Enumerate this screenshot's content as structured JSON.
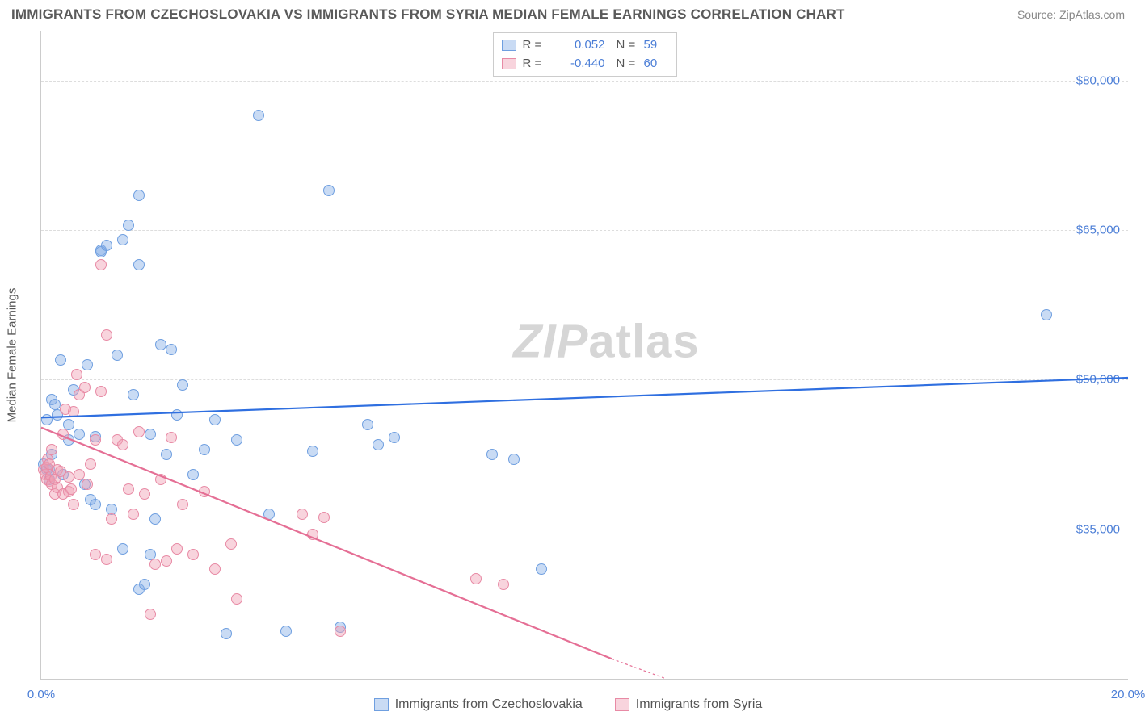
{
  "title": "IMMIGRANTS FROM CZECHOSLOVAKIA VS IMMIGRANTS FROM SYRIA MEDIAN FEMALE EARNINGS CORRELATION CHART",
  "source": "Source: ZipAtlas.com",
  "watermark_a": "ZIP",
  "watermark_b": "atlas",
  "y_axis_title": "Median Female Earnings",
  "chart": {
    "type": "scatter-correlation",
    "background_color": "#ffffff",
    "grid_color": "#dddddd",
    "axis_color": "#cccccc",
    "tick_label_color": "#4a7dd6",
    "xlim": [
      0,
      20
    ],
    "ylim": [
      20000,
      85000
    ],
    "y_ticks": [
      {
        "v": 35000,
        "label": "$35,000"
      },
      {
        "v": 50000,
        "label": "$50,000"
      },
      {
        "v": 65000,
        "label": "$65,000"
      },
      {
        "v": 80000,
        "label": "$80,000"
      }
    ],
    "x_ticks": [
      {
        "v": 0,
        "label": "0.0%"
      },
      {
        "v": 20,
        "label": "20.0%"
      }
    ],
    "marker_radius": 7,
    "marker_stroke_width": 1,
    "trend_line_width": 2.2,
    "series": [
      {
        "name": "Immigrants from Czechoslovakia",
        "color_fill": "rgba(135,175,230,0.45)",
        "color_stroke": "#6f9fe0",
        "trend_color": "#2f6fe0",
        "r": "0.052",
        "n": "59",
        "trend": {
          "x1": 0,
          "y1": 46200,
          "x2": 20,
          "y2": 50200
        },
        "points": [
          [
            0.05,
            41500
          ],
          [
            0.1,
            41000
          ],
          [
            0.1,
            46000
          ],
          [
            0.15,
            40000
          ],
          [
            0.2,
            48000
          ],
          [
            0.2,
            42500
          ],
          [
            0.25,
            47500
          ],
          [
            0.3,
            46500
          ],
          [
            0.35,
            52000
          ],
          [
            0.4,
            40500
          ],
          [
            0.5,
            45500
          ],
          [
            0.5,
            44000
          ],
          [
            0.6,
            49000
          ],
          [
            0.7,
            44500
          ],
          [
            0.8,
            39500
          ],
          [
            0.85,
            51500
          ],
          [
            0.9,
            38000
          ],
          [
            1.0,
            44300
          ],
          [
            1.0,
            37500
          ],
          [
            1.1,
            63000
          ],
          [
            1.1,
            62800
          ],
          [
            1.2,
            63500
          ],
          [
            1.3,
            37000
          ],
          [
            1.4,
            52500
          ],
          [
            1.5,
            64000
          ],
          [
            1.5,
            33000
          ],
          [
            1.6,
            65500
          ],
          [
            1.7,
            48500
          ],
          [
            1.8,
            68500
          ],
          [
            1.8,
            61500
          ],
          [
            1.8,
            29000
          ],
          [
            1.9,
            29500
          ],
          [
            2.0,
            32500
          ],
          [
            2.0,
            44500
          ],
          [
            2.1,
            36000
          ],
          [
            2.2,
            53500
          ],
          [
            2.3,
            42500
          ],
          [
            2.4,
            53000
          ],
          [
            2.5,
            46500
          ],
          [
            2.6,
            49500
          ],
          [
            2.8,
            40500
          ],
          [
            3.0,
            43000
          ],
          [
            3.2,
            46000
          ],
          [
            3.4,
            24500
          ],
          [
            3.6,
            44000
          ],
          [
            4.0,
            76500
          ],
          [
            4.2,
            36500
          ],
          [
            4.5,
            24800
          ],
          [
            5.0,
            42800
          ],
          [
            5.3,
            69000
          ],
          [
            5.5,
            25200
          ],
          [
            6.0,
            45500
          ],
          [
            6.2,
            43500
          ],
          [
            6.5,
            44200
          ],
          [
            8.3,
            42500
          ],
          [
            8.7,
            42000
          ],
          [
            9.2,
            31000
          ],
          [
            18.5,
            56500
          ],
          [
            0.15,
            41000
          ]
        ]
      },
      {
        "name": "Immigrants from Syria",
        "color_fill": "rgba(240,160,180,0.45)",
        "color_stroke": "#e88aa5",
        "trend_color": "#e56f95",
        "r": "-0.440",
        "n": "60",
        "trend": {
          "x1": 0,
          "y1": 45200,
          "x2": 10.5,
          "y2": 22000
        },
        "trend_dash_extension": {
          "x1": 10.5,
          "y1": 22000,
          "x2": 11.5,
          "y2": 20000
        },
        "points": [
          [
            0.05,
            41000
          ],
          [
            0.08,
            40500
          ],
          [
            0.1,
            40000
          ],
          [
            0.1,
            41200
          ],
          [
            0.12,
            42000
          ],
          [
            0.15,
            39800
          ],
          [
            0.15,
            41500
          ],
          [
            0.18,
            40300
          ],
          [
            0.2,
            39500
          ],
          [
            0.2,
            43000
          ],
          [
            0.25,
            40000
          ],
          [
            0.25,
            38500
          ],
          [
            0.3,
            41000
          ],
          [
            0.3,
            39200
          ],
          [
            0.35,
            40800
          ],
          [
            0.4,
            38500
          ],
          [
            0.4,
            44500
          ],
          [
            0.45,
            47000
          ],
          [
            0.5,
            38800
          ],
          [
            0.5,
            40200
          ],
          [
            0.55,
            39000
          ],
          [
            0.6,
            46800
          ],
          [
            0.6,
            37500
          ],
          [
            0.65,
            50500
          ],
          [
            0.7,
            40500
          ],
          [
            0.7,
            48500
          ],
          [
            0.8,
            49200
          ],
          [
            0.85,
            39500
          ],
          [
            0.9,
            41500
          ],
          [
            1.0,
            44000
          ],
          [
            1.0,
            32500
          ],
          [
            1.1,
            48800
          ],
          [
            1.1,
            61500
          ],
          [
            1.2,
            32000
          ],
          [
            1.2,
            54500
          ],
          [
            1.3,
            36000
          ],
          [
            1.4,
            44000
          ],
          [
            1.5,
            43500
          ],
          [
            1.6,
            39000
          ],
          [
            1.7,
            36500
          ],
          [
            1.8,
            44800
          ],
          [
            1.9,
            38500
          ],
          [
            2.0,
            26500
          ],
          [
            2.1,
            31500
          ],
          [
            2.2,
            40000
          ],
          [
            2.3,
            31800
          ],
          [
            2.4,
            44200
          ],
          [
            2.5,
            33000
          ],
          [
            2.6,
            37500
          ],
          [
            2.8,
            32500
          ],
          [
            3.0,
            38800
          ],
          [
            3.2,
            31000
          ],
          [
            3.5,
            33500
          ],
          [
            3.6,
            28000
          ],
          [
            4.8,
            36500
          ],
          [
            5.0,
            34500
          ],
          [
            5.2,
            36200
          ],
          [
            5.5,
            24800
          ],
          [
            8.0,
            30000
          ],
          [
            8.5,
            29500
          ]
        ]
      }
    ],
    "stats_legend_border": "#cccccc"
  },
  "labels": {
    "R": "R  =",
    "N": "N  ="
  }
}
